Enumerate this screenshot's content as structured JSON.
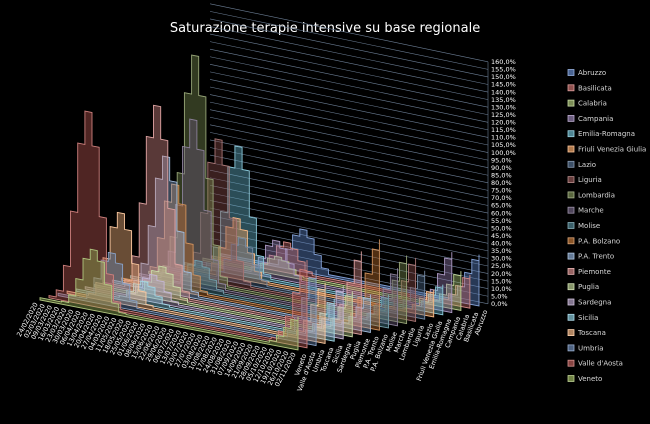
{
  "chart_data": {
    "type": "area",
    "title": "Saturazione terapie intensive su base regionale",
    "y_ticks": [
      "0,0%",
      "5,0%",
      "10,0%",
      "15,0%",
      "20,0%",
      "25,0%",
      "30,0%",
      "35,0%",
      "40,0%",
      "45,0%",
      "50,0%",
      "55,0%",
      "60,0%",
      "65,0%",
      "70,0%",
      "75,0%",
      "80,0%",
      "85,0%",
      "90,0%",
      "95,0%",
      "100,0%",
      "105,0%",
      "110,0%",
      "115,0%",
      "120,0%",
      "125,0%",
      "130,0%",
      "135,0%",
      "140,0%",
      "145,0%",
      "150,0%",
      "155,0%",
      "160,0%"
    ],
    "ylim": [
      0,
      160
    ],
    "x_dates": [
      "24/02/2020",
      "02/03/2020",
      "09/03/2020",
      "16/03/2020",
      "23/03/2020",
      "30/03/2020",
      "06/04/2020",
      "13/04/2020",
      "20/04/2020",
      "27/04/2020",
      "04/05/2020",
      "11/05/2020",
      "18/05/2020",
      "25/05/2020",
      "01/06/2020",
      "08/06/2020",
      "15/06/2020",
      "22/06/2020",
      "29/06/2020",
      "06/07/2020",
      "13/07/2020",
      "20/07/2020",
      "27/07/2020",
      "03/08/2020",
      "10/08/2020",
      "17/08/2020",
      "24/08/2020",
      "31/08/2020",
      "07/09/2020",
      "14/09/2020",
      "21/09/2020",
      "28/09/2020",
      "05/10/2020",
      "12/10/2020",
      "19/10/2020",
      "26/10/2020",
      "02/11/2020"
    ],
    "depth_labels": [
      "Veneto",
      "Valle d'Aosta",
      "Umbria",
      "Toscana",
      "Sicilia",
      "Sardegna",
      "Puglia",
      "Piemonte",
      "P.A. Trento",
      "P.A. Bolzano",
      "Molise",
      "Marche",
      "Lombardia",
      "Liguria",
      "Lazio",
      "Friuli Venezia Giulia",
      "Emilia-Romagna",
      "Campania",
      "Calabria",
      "Basilicata",
      "Abruzzo"
    ],
    "legend_position": "right",
    "series": [
      {
        "name": "Abruzzo",
        "color": "#4472c4",
        "peak": 28,
        "peak_week": 11,
        "second_wave": 34
      },
      {
        "name": "Basilicata",
        "color": "#c0504d",
        "peak": 20,
        "peak_week": 10,
        "second_wave": 22
      },
      {
        "name": "Calabria",
        "color": "#9bbb59",
        "peak": 12,
        "peak_week": 10,
        "second_wave": 26
      },
      {
        "name": "Campania",
        "color": "#8064a2",
        "peak": 25,
        "peak_week": 11,
        "second_wave": 40
      },
      {
        "name": "Emilia-Romagna",
        "color": "#4bacc6",
        "peak": 85,
        "peak_week": 7,
        "second_wave": 20
      },
      {
        "name": "Friuli Venezia Giulia",
        "color": "#f79646",
        "peak": 40,
        "peak_week": 8,
        "second_wave": 18
      },
      {
        "name": "Lazio",
        "color": "#2c4d75",
        "peak": 30,
        "peak_week": 10,
        "second_wave": 32
      },
      {
        "name": "Liguria",
        "color": "#772c2a",
        "peak": 95,
        "peak_week": 8,
        "second_wave": 42
      },
      {
        "name": "Lombardia",
        "color": "#5f7530",
        "peak": 150,
        "peak_week": 6,
        "second_wave": 45
      },
      {
        "name": "Marche",
        "color": "#4d3b62",
        "peak": 110,
        "peak_week": 7,
        "second_wave": 38
      },
      {
        "name": "Molise",
        "color": "#276a7c",
        "peak": 20,
        "peak_week": 9,
        "second_wave": 22
      },
      {
        "name": "P.A. Bolzano",
        "color": "#b65708",
        "peak": 70,
        "peak_week": 7,
        "second_wave": 60
      },
      {
        "name": "P.A. Trento",
        "color": "#729aca",
        "peak": 90,
        "peak_week": 7,
        "second_wave": 25
      },
      {
        "name": "Piemonte",
        "color": "#cd7371",
        "peak": 125,
        "peak_week": 7,
        "second_wave": 55
      },
      {
        "name": "Puglia",
        "color": "#afc97a",
        "peak": 22,
        "peak_week": 9,
        "second_wave": 30
      },
      {
        "name": "Sardegna",
        "color": "#a992c1",
        "peak": 18,
        "peak_week": 9,
        "second_wave": 35
      },
      {
        "name": "Sicilia",
        "color": "#6fc2d8",
        "peak": 15,
        "peak_week": 9,
        "second_wave": 28
      },
      {
        "name": "Toscana",
        "color": "#f9ab6b",
        "peak": 60,
        "peak_week": 7,
        "second_wave": 40
      },
      {
        "name": "Umbria",
        "color": "#4a6fa6",
        "peak": 35,
        "peak_week": 7,
        "second_wave": 50
      },
      {
        "name": "Valle d'Aosta",
        "color": "#b03a36",
        "peak": 128,
        "peak_week": 5,
        "second_wave": 58
      },
      {
        "name": "Veneto",
        "color": "#86a83a",
        "peak": 40,
        "peak_week": 7,
        "second_wave": 22
      }
    ]
  }
}
